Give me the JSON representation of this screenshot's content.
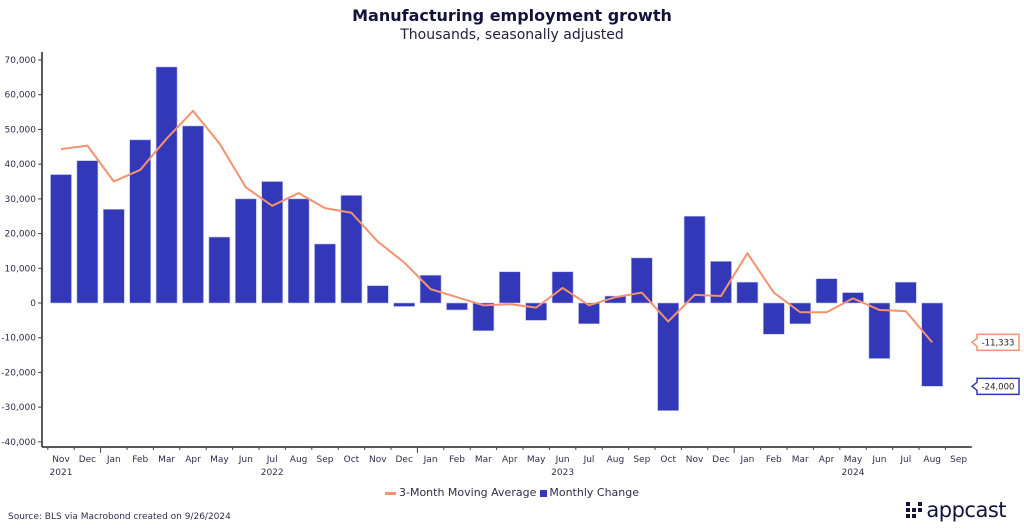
{
  "chart_data": {
    "type": "bar",
    "title": "Manufacturing employment growth",
    "subtitle": "Thousands, seasonally adjusted",
    "xlabel": "",
    "ylabel": "",
    "ylim": [
      -40000,
      70000
    ],
    "yticks": [
      70000,
      60000,
      50000,
      40000,
      30000,
      20000,
      10000,
      0,
      -10000,
      -20000,
      -30000,
      -40000
    ],
    "ytick_labels": [
      "70,000",
      "60,000",
      "50,000",
      "40,000",
      "30,000",
      "20,000",
      "10,000",
      "0",
      "-10,000",
      "-20,000",
      "-30,000",
      "-40,000"
    ],
    "categories": [
      "Nov",
      "Dec",
      "Jan",
      "Feb",
      "Mar",
      "Apr",
      "May",
      "Jun",
      "Jul",
      "Aug",
      "Sep",
      "Oct",
      "Nov",
      "Dec",
      "Jan",
      "Feb",
      "Mar",
      "Apr",
      "May",
      "Jun",
      "Jul",
      "Aug",
      "Sep",
      "Oct",
      "Nov",
      "Dec",
      "Jan",
      "Feb",
      "Mar",
      "Apr",
      "May",
      "Jun",
      "Jul",
      "Aug",
      "Sep"
    ],
    "year_labels": [
      {
        "index": 0,
        "label": "2021"
      },
      {
        "index": 8,
        "label": "2022"
      },
      {
        "index": 19,
        "label": "2023"
      },
      {
        "index": 30,
        "label": "2024"
      }
    ],
    "grid": false,
    "legend_position": "bottom-center",
    "series": [
      {
        "name": "Monthly Change",
        "type": "bar",
        "color": "#3338b8",
        "values": [
          37000,
          41000,
          27000,
          47000,
          68000,
          51000,
          19000,
          30000,
          35000,
          30000,
          17000,
          31000,
          5000,
          -1000,
          8000,
          -2000,
          -8000,
          9000,
          -5000,
          9000,
          -6000,
          2000,
          13000,
          -31000,
          25000,
          12000,
          6000,
          -9000,
          -6000,
          7000,
          3000,
          -16000,
          6000,
          -24000,
          null
        ]
      },
      {
        "name": "3-Month Moving Average",
        "type": "line",
        "color": "#f4926f",
        "values": [
          44333,
          45333,
          35000,
          38333,
          47333,
          55333,
          46000,
          33333,
          28000,
          31667,
          27333,
          26000,
          17667,
          11667,
          4000,
          1667,
          -667,
          -333,
          -1333,
          4333,
          -667,
          1667,
          3000,
          -5333,
          2333,
          2000,
          14333,
          3000,
          -2667,
          -2667,
          1333,
          -2000,
          -2333,
          -11333,
          null
        ]
      }
    ],
    "annotations": [
      {
        "series": "3-Month Moving Average",
        "label": "-11,333",
        "value": -11333,
        "color": "#f4926f"
      },
      {
        "series": "Monthly Change",
        "label": "-24,000",
        "value": -24000,
        "color": "#3338b8"
      }
    ]
  },
  "legend": {
    "line_label": "3-Month Moving Average",
    "bar_label": "Monthly Change"
  },
  "source": "Source: BLS via Macrobond created on 9/26/2024",
  "logo": {
    "text": "appcast"
  }
}
